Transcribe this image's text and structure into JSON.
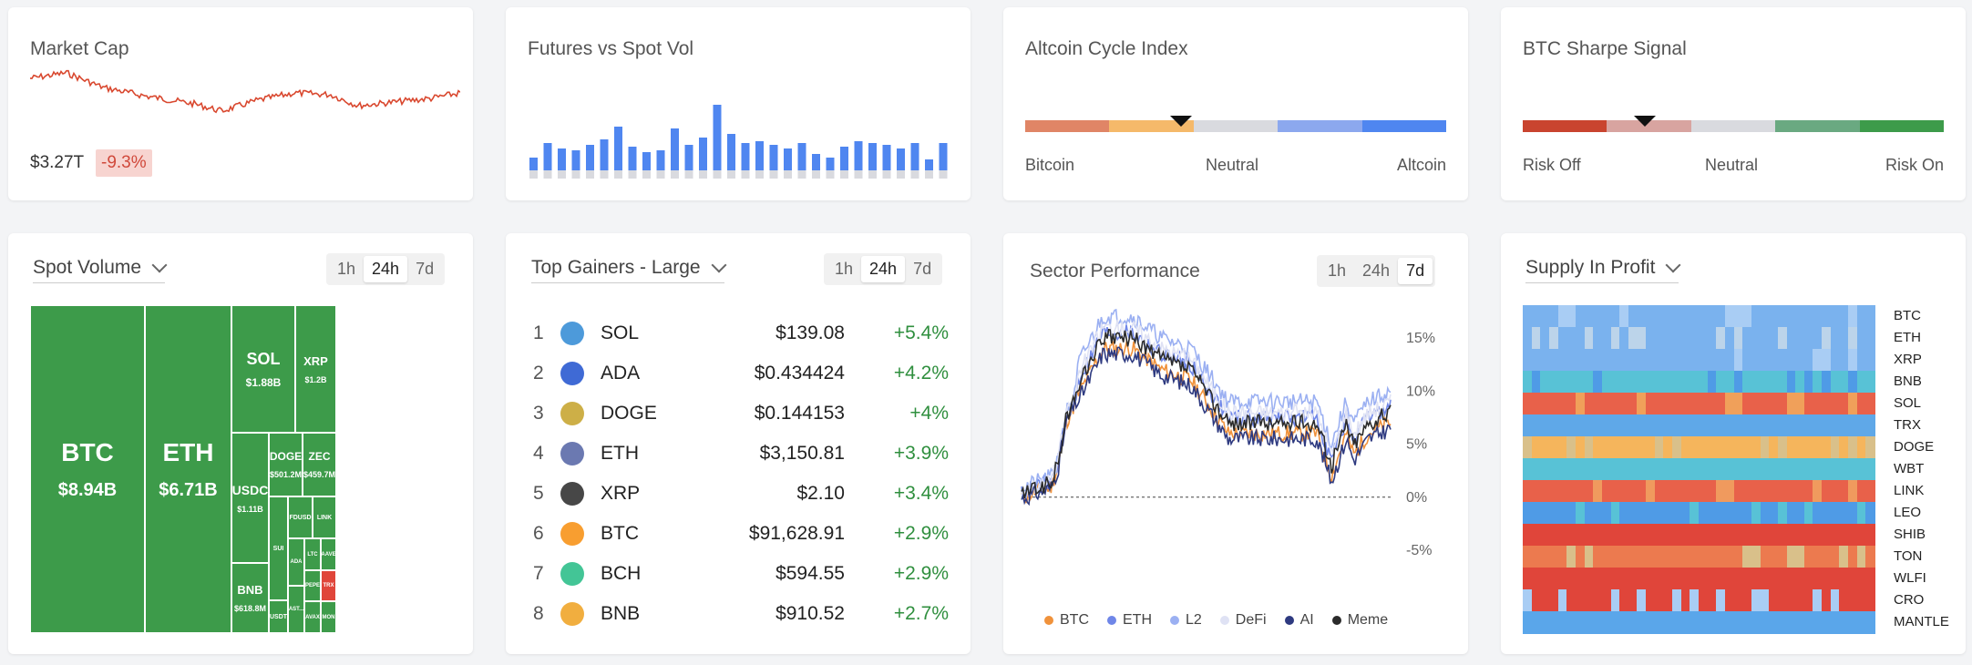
{
  "market_cap": {
    "title": "Market Cap",
    "value": "$3.27T",
    "change": "-9.3%",
    "colors": {
      "line": "#d9482f",
      "badge_bg": "#f7d4d0"
    }
  },
  "futures_vol": {
    "title": "Futures vs Spot Vol"
  },
  "altcoin_cycle": {
    "title": "Altcoin Cycle Index",
    "labels": [
      "Bitcoin",
      "Neutral",
      "Altcoin"
    ],
    "value": 0.37,
    "colors": [
      "#e08566",
      "#f5b96a",
      "#d9dadf",
      "#8ca8ee",
      "#4f86f0"
    ]
  },
  "sharpe": {
    "title": "BTC Sharpe Signal",
    "labels": [
      "Risk Off",
      "Neutral",
      "Risk On"
    ],
    "value": 0.29,
    "colors": [
      "#c9442f",
      "#d8a4a0",
      "#d9dadf",
      "#6aa981",
      "#3d9b4a"
    ]
  },
  "spot_volume": {
    "title": "Spot Volume",
    "timeframes": [
      "1h",
      "24h",
      "7d"
    ],
    "active": "24h",
    "tiles": [
      {
        "name": "BTC",
        "value": "$8.94B",
        "big": true
      },
      {
        "name": "ETH",
        "value": "$6.71B",
        "big": true
      },
      {
        "name": "SOL",
        "value": "$1.88B"
      },
      {
        "name": "XRP",
        "value": "$1.2B"
      },
      {
        "name": "USDC",
        "value": "$1.11B"
      },
      {
        "name": "DOGE",
        "value": "$501.2M"
      },
      {
        "name": "ZEC",
        "value": "$459.7M"
      },
      {
        "name": "BNB",
        "value": "$618.8M"
      },
      {
        "name": "SUI",
        "value": ""
      },
      {
        "name": "FDUSD",
        "value": ""
      },
      {
        "name": "LINK",
        "value": ""
      },
      {
        "name": "USDT",
        "value": ""
      },
      {
        "name": "ADA",
        "value": ""
      },
      {
        "name": "LTC",
        "value": ""
      },
      {
        "name": "AAVE",
        "value": ""
      },
      {
        "name": "PEPE",
        "value": ""
      },
      {
        "name": "TRX",
        "value": ""
      },
      {
        "name": "AST...",
        "value": ""
      },
      {
        "name": "AVAX",
        "value": ""
      },
      {
        "name": "MON",
        "value": ""
      }
    ]
  },
  "top_gainers": {
    "title": "Top Gainers - Large",
    "timeframes": [
      "1h",
      "24h",
      "7d"
    ],
    "active": "24h",
    "rows": [
      {
        "rank": "1",
        "symbol": "SOL",
        "price": "$139.08",
        "change": "+5.4%",
        "icon": "solana-icon",
        "color": "#3a8fd6"
      },
      {
        "rank": "2",
        "symbol": "ADA",
        "price": "$0.434424",
        "change": "+4.2%",
        "icon": "cardano-icon",
        "color": "#2a5ad0"
      },
      {
        "rank": "3",
        "symbol": "DOGE",
        "price": "$0.144153",
        "change": "+4%",
        "icon": "dogecoin-icon",
        "color": "#c8a633"
      },
      {
        "rank": "4",
        "symbol": "ETH",
        "price": "$3,150.81",
        "change": "+3.9%",
        "icon": "ethereum-icon",
        "color": "#5b6aa8"
      },
      {
        "rank": "5",
        "symbol": "XRP",
        "price": "$2.10",
        "change": "+3.4%",
        "icon": "xrp-icon",
        "color": "#333333"
      },
      {
        "rank": "6",
        "symbol": "BTC",
        "price": "$91,628.91",
        "change": "+2.9%",
        "icon": "bitcoin-icon",
        "color": "#f7931a"
      },
      {
        "rank": "7",
        "symbol": "BCH",
        "price": "$594.55",
        "change": "+2.9%",
        "icon": "bitcoin-cash-icon",
        "color": "#2fbf8b"
      },
      {
        "rank": "8",
        "symbol": "BNB",
        "price": "$910.52",
        "change": "+2.7%",
        "icon": "bnb-icon",
        "color": "#f0a52a"
      }
    ]
  },
  "sector_perf": {
    "title": "Sector Performance",
    "timeframes": [
      "1h",
      "24h",
      "7d"
    ],
    "active": "7d",
    "y_ticks": [
      "15%",
      "10%",
      "5%",
      "0%",
      "-5%"
    ],
    "legend": [
      {
        "name": "BTC",
        "color": "#f0923b"
      },
      {
        "name": "ETH",
        "color": "#6f86e8"
      },
      {
        "name": "L2",
        "color": "#9bb0f2"
      },
      {
        "name": "DeFi",
        "color": "#dfe2f4"
      },
      {
        "name": "AI",
        "color": "#2e3a80"
      },
      {
        "name": "Meme",
        "color": "#2b2b2b"
      }
    ]
  },
  "supply_profit": {
    "title": "Supply In Profit",
    "coins": [
      "BTC",
      "ETH",
      "XRP",
      "BNB",
      "SOL",
      "TRX",
      "DOGE",
      "WBT",
      "LINK",
      "LEO",
      "SHIB",
      "TON",
      "WLFI",
      "CRO",
      "MANTLE"
    ]
  },
  "chart_data": [
    {
      "type": "line",
      "title": "Sector Performance",
      "ylim": [
        -5,
        15
      ],
      "legend": [
        "BTC",
        "ETH",
        "L2",
        "DeFi",
        "AI",
        "Meme"
      ]
    },
    {
      "type": "bar",
      "title": "Futures vs Spot Vol"
    }
  ]
}
